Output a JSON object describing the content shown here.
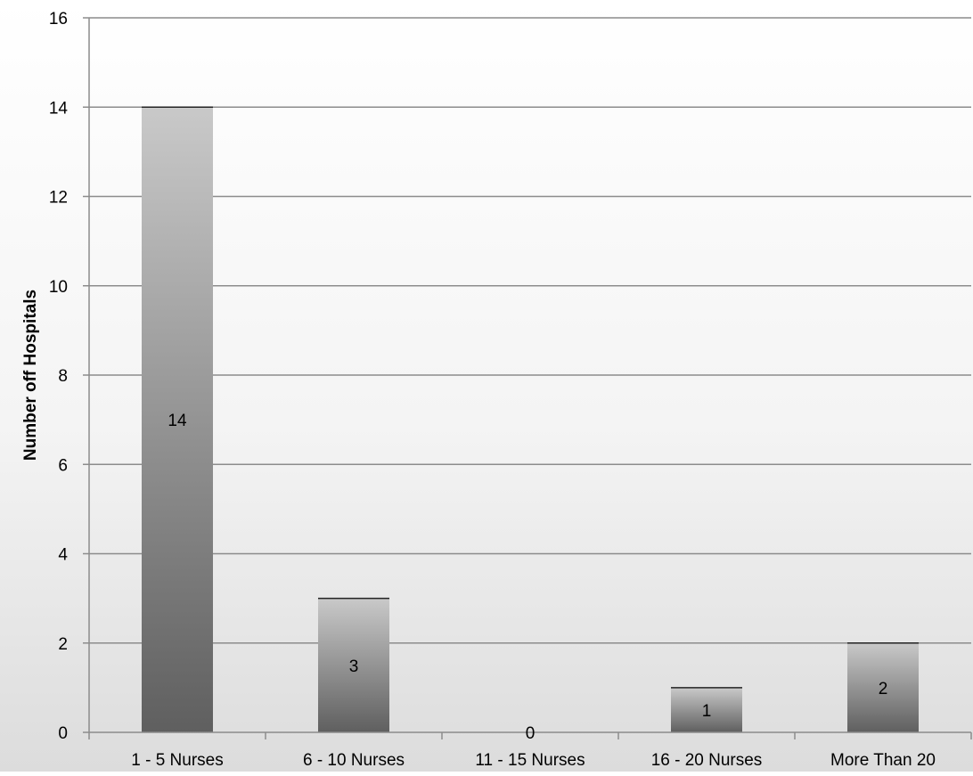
{
  "chart_data": {
    "type": "bar",
    "title": "",
    "xlabel": "",
    "ylabel": "Number off Hospitals",
    "categories": [
      "1 - 5 Nurses",
      "6 - 10 Nurses",
      "11 - 15 Nurses",
      "16 - 20 Nurses",
      "More Than 20"
    ],
    "values": [
      14,
      3,
      0,
      1,
      2
    ],
    "data_labels": [
      "14",
      "3",
      "0",
      "1",
      "2"
    ],
    "ylim": [
      0,
      16
    ],
    "yticks": [
      0,
      2,
      4,
      6,
      8,
      10,
      12,
      14,
      16
    ],
    "grid": true,
    "legend": "none",
    "colors": {
      "bar_light": "#c9c9c9",
      "bar_dark": "#5f5f5f",
      "gridline": "#8c8c8c",
      "axis": "#8c8c8c",
      "text": "#000000"
    }
  }
}
